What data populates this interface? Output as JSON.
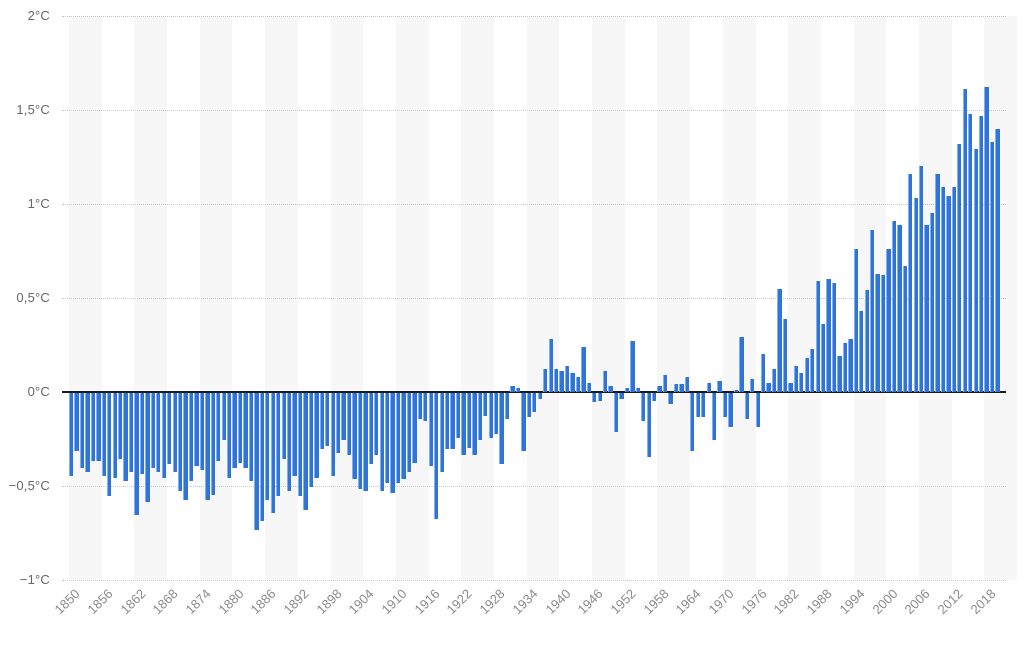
{
  "chart_data": {
    "type": "bar",
    "title": "",
    "unit": "°C",
    "ylim": [
      -1,
      2
    ],
    "grid": "horizontal-dotted",
    "legend": "none",
    "ytick_values": [
      2,
      1.5,
      1,
      0.5,
      0,
      -0.5,
      -1
    ],
    "ytick_labels": [
      "2°C",
      "1,5°C",
      "1°C",
      "0,5°C",
      "0°C",
      "−0,5°C",
      "−1°C"
    ],
    "xtick_labels": [
      "1850",
      "1856",
      "1862",
      "1868",
      "1874",
      "1880",
      "1886",
      "1892",
      "1898",
      "1904",
      "1910",
      "1916",
      "1922",
      "1928",
      "1934",
      "1940",
      "1946",
      "1952",
      "1958",
      "1964",
      "1970",
      "1976",
      "1982",
      "1988",
      "1994",
      "2000",
      "2006",
      "2012",
      "2018"
    ],
    "years": [
      1850,
      1851,
      1852,
      1853,
      1854,
      1855,
      1856,
      1857,
      1858,
      1859,
      1860,
      1861,
      1862,
      1863,
      1864,
      1865,
      1866,
      1867,
      1868,
      1869,
      1870,
      1871,
      1872,
      1873,
      1874,
      1875,
      1876,
      1877,
      1878,
      1879,
      1880,
      1881,
      1882,
      1883,
      1884,
      1885,
      1886,
      1887,
      1888,
      1889,
      1890,
      1891,
      1892,
      1893,
      1894,
      1895,
      1896,
      1897,
      1898,
      1899,
      1900,
      1901,
      1902,
      1903,
      1904,
      1905,
      1906,
      1907,
      1908,
      1909,
      1910,
      1911,
      1912,
      1913,
      1914,
      1915,
      1916,
      1917,
      1918,
      1919,
      1920,
      1921,
      1922,
      1923,
      1924,
      1925,
      1926,
      1927,
      1928,
      1929,
      1930,
      1931,
      1932,
      1933,
      1934,
      1935,
      1936,
      1937,
      1938,
      1939,
      1940,
      1941,
      1942,
      1943,
      1944,
      1945,
      1946,
      1947,
      1948,
      1949,
      1950,
      1951,
      1952,
      1953,
      1954,
      1955,
      1956,
      1957,
      1958,
      1959,
      1960,
      1961,
      1962,
      1963,
      1964,
      1965,
      1966,
      1967,
      1968,
      1969,
      1970,
      1971,
      1972,
      1973,
      1974,
      1975,
      1976,
      1977,
      1978,
      1979,
      1980,
      1981,
      1982,
      1983,
      1984,
      1985,
      1986,
      1987,
      1988,
      1989,
      1990,
      1991,
      1992,
      1993,
      1994,
      1995,
      1996,
      1997,
      1998,
      1999,
      2000,
      2001,
      2002,
      2003,
      2004,
      2005,
      2006,
      2007,
      2008,
      2009,
      2010,
      2011,
      2012,
      2013,
      2014,
      2015,
      2016,
      2017,
      2018,
      2019,
      2020
    ],
    "values": [
      -0.44,
      -0.31,
      -0.4,
      -0.42,
      -0.36,
      -0.36,
      -0.44,
      -0.55,
      -0.45,
      -0.35,
      -0.47,
      -0.42,
      -0.65,
      -0.43,
      -0.58,
      -0.4,
      -0.42,
      -0.45,
      -0.38,
      -0.42,
      -0.52,
      -0.57,
      -0.47,
      -0.39,
      -0.41,
      -0.57,
      -0.54,
      -0.36,
      -0.25,
      -0.45,
      -0.4,
      -0.37,
      -0.4,
      -0.47,
      -0.73,
      -0.68,
      -0.57,
      -0.64,
      -0.55,
      -0.35,
      -0.52,
      -0.44,
      -0.55,
      -0.62,
      -0.5,
      -0.45,
      -0.3,
      -0.28,
      -0.44,
      -0.32,
      -0.25,
      -0.33,
      -0.46,
      -0.51,
      -0.52,
      -0.38,
      -0.33,
      -0.52,
      -0.48,
      -0.53,
      -0.48,
      -0.46,
      -0.42,
      -0.37,
      -0.14,
      -0.15,
      -0.39,
      -0.67,
      -0.42,
      -0.3,
      -0.3,
      -0.24,
      -0.33,
      -0.29,
      -0.33,
      -0.25,
      -0.12,
      -0.24,
      -0.22,
      -0.38,
      -0.14,
      0.03,
      0.02,
      -0.31,
      -0.13,
      -0.1,
      -0.03,
      0.12,
      0.28,
      0.12,
      0.11,
      0.14,
      0.1,
      0.08,
      0.24,
      0.05,
      -0.05,
      -0.04,
      0.11,
      0.03,
      -0.21,
      -0.03,
      0.02,
      0.27,
      0.02,
      -0.15,
      -0.34,
      -0.04,
      0.03,
      0.09,
      -0.06,
      0.04,
      0.04,
      0.08,
      -0.31,
      -0.13,
      -0.13,
      0.05,
      -0.25,
      0.06,
      -0.13,
      -0.18,
      0.01,
      0.29,
      -0.14,
      0.07,
      -0.18,
      0.2,
      0.05,
      0.12,
      0.55,
      0.39,
      0.05,
      0.14,
      0.1,
      0.18,
      0.23,
      0.59,
      0.36,
      0.6,
      0.58,
      0.19,
      0.26,
      0.28,
      0.76,
      0.43,
      0.54,
      0.86,
      0.63,
      0.62,
      0.76,
      0.91,
      0.89,
      0.67,
      1.16,
      1.03,
      1.2,
      0.89,
      0.95,
      1.16,
      1.09,
      1.04,
      1.09,
      1.32,
      1.61,
      1.48,
      1.29,
      1.47,
      1.62,
      1.33,
      1.4
    ],
    "colors": {
      "bar": "#2f74d8",
      "bar_edge_highlight": "#86afe9",
      "zero_line": "#1a1a1a",
      "gridline": "#c9c9c9",
      "stripe": "#f7f7f7",
      "background": "#ffffff",
      "y_label_text": "#666666",
      "x_label_text": "#8a8a8a"
    }
  }
}
